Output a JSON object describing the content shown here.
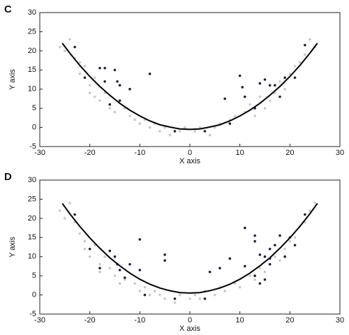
{
  "chart_data": [
    {
      "type": "scatter",
      "label": "C",
      "x_label": "X axis",
      "y_label": "Y axis",
      "xlim": [
        -30,
        30
      ],
      "ylim": [
        -5,
        30
      ],
      "xticks": [
        -30,
        -20,
        -10,
        0,
        10,
        20,
        30
      ],
      "yticks": [
        -5,
        0,
        5,
        10,
        15,
        20,
        25,
        30
      ],
      "series": [
        {
          "type": "scatter",
          "color": "#c9c9c9",
          "x": [
            -26,
            -25,
            -24,
            -23,
            -22,
            -22,
            -21,
            -20,
            -20,
            -19,
            -19,
            -18,
            -17,
            -16,
            -15,
            -13,
            -12,
            -11,
            -10,
            -9,
            -8,
            -7,
            -6,
            -5,
            -4,
            -2,
            -1,
            1,
            2,
            4,
            5,
            6,
            8,
            9,
            11,
            12,
            13,
            14,
            15,
            16,
            17,
            18,
            19,
            20,
            21,
            22,
            23,
            24,
            25
          ],
          "values": [
            21,
            20,
            23,
            18,
            17,
            14,
            16,
            11,
            9,
            13,
            8,
            7,
            9,
            5,
            4,
            5,
            3,
            2,
            1,
            2,
            0,
            1,
            -1,
            0,
            -2,
            -1,
            0,
            -1,
            0,
            -2,
            0,
            1,
            2,
            3,
            4,
            6,
            3,
            8,
            5,
            7,
            9,
            12,
            10,
            14,
            16,
            17,
            19,
            23,
            21
          ]
        },
        {
          "type": "scatter",
          "color": "#1f1f3f",
          "x": [
            -23,
            -21,
            -18,
            -17,
            -17,
            -16,
            -15,
            -14.5,
            -14,
            -14,
            -12,
            -8,
            -3,
            3,
            7,
            8,
            10,
            10.5,
            11,
            13,
            14,
            15,
            16,
            17,
            18,
            19,
            21,
            23
          ],
          "values": [
            21,
            13,
            15.5,
            15.5,
            12,
            6,
            15,
            12,
            11,
            7,
            10,
            14,
            -1,
            -1,
            7.5,
            1,
            13.5,
            10.5,
            8,
            5,
            11.5,
            12.5,
            11,
            11,
            8,
            13,
            13,
            21.5
          ]
        },
        {
          "type": "line",
          "color": "#000000",
          "x": [
            -25.5,
            -24,
            -22,
            -20,
            -18,
            -16,
            -14,
            -12,
            -10,
            -8,
            -6,
            -4,
            -2,
            0,
            2,
            4,
            6,
            8,
            10,
            12,
            14,
            16,
            18,
            20,
            22,
            24,
            25.5
          ],
          "values": [
            22,
            19.4,
            16.2,
            13.3,
            10.7,
            8.4,
            6.3,
            4.5,
            3,
            1.7,
            0.7,
            0.1,
            -0.4,
            -0.5,
            -0.4,
            0.1,
            0.7,
            1.7,
            3,
            4.5,
            6.3,
            8.4,
            10.7,
            13.3,
            16.2,
            19.4,
            22
          ]
        }
      ]
    },
    {
      "type": "scatter",
      "label": "D",
      "x_label": "X axis",
      "y_label": "Y axis",
      "xlim": [
        -30,
        30
      ],
      "ylim": [
        -5,
        30
      ],
      "xticks": [
        -30,
        -20,
        -10,
        0,
        10,
        20,
        30
      ],
      "yticks": [
        -5,
        0,
        5,
        10,
        15,
        20,
        25,
        30
      ],
      "series": [
        {
          "type": "scatter",
          "color": "#c9c9c9",
          "x": [
            -26,
            -25,
            -24,
            -23,
            -22,
            -21,
            -21,
            -20,
            -19,
            -18,
            -18,
            -17,
            -16,
            -15,
            -14,
            -13,
            -11,
            -10,
            -9,
            -8,
            -7,
            -6,
            -5,
            -3,
            -2,
            0,
            1,
            2,
            3,
            5,
            6,
            7,
            9,
            10,
            12,
            13,
            14,
            15,
            16,
            17,
            18,
            19,
            20,
            21,
            22,
            23,
            24,
            25
          ],
          "values": [
            22,
            20,
            24,
            19,
            16,
            14,
            12,
            10,
            13,
            8,
            6,
            10,
            7,
            5,
            3,
            4,
            3,
            1,
            2,
            0,
            1,
            0,
            -1,
            -2,
            0,
            -1,
            0,
            -1,
            1,
            0,
            2,
            1,
            3,
            2,
            5,
            4,
            7,
            6,
            8,
            10,
            9,
            12,
            14,
            15,
            18,
            19,
            22,
            24
          ]
        },
        {
          "type": "scatter",
          "color": "#1f1f3f",
          "x": [
            -23,
            -20,
            -18,
            -16,
            -15,
            -14.5,
            -14,
            -13,
            -12,
            -10,
            -10,
            -9,
            -5,
            -5,
            -3,
            3,
            4,
            6,
            8,
            11,
            11,
            13,
            13,
            13,
            14,
            14,
            15,
            15,
            16,
            16,
            16,
            17,
            18,
            19,
            20,
            21,
            23
          ],
          "values": [
            21,
            12,
            7,
            11.5,
            10,
            8,
            6.5,
            4.5,
            8,
            14.5,
            6.5,
            0,
            9,
            10.5,
            -1,
            -1,
            6,
            7,
            9.5,
            17.5,
            7.5,
            14,
            15.5,
            5,
            10.5,
            3,
            10,
            4,
            9.5,
            12,
            8,
            13,
            15.5,
            10,
            15,
            13,
            21
          ]
        },
        {
          "type": "line",
          "color": "#000000",
          "x": [
            -25.5,
            -24,
            -22,
            -20,
            -18,
            -16,
            -14,
            -12,
            -10,
            -8,
            -6,
            -4,
            -2,
            0,
            2,
            4,
            6,
            8,
            10,
            12,
            14,
            16,
            18,
            20,
            22,
            24,
            25.5
          ],
          "values": [
            23.9,
            21.2,
            17.9,
            14.9,
            12.2,
            9.7,
            7.6,
            5.7,
            4.1,
            2.8,
            1.8,
            1.1,
            0.6,
            0.5,
            0.6,
            1.1,
            1.8,
            2.8,
            4.1,
            5.7,
            7.6,
            9.7,
            12.2,
            14.9,
            17.9,
            21.2,
            23.9
          ]
        }
      ]
    }
  ]
}
